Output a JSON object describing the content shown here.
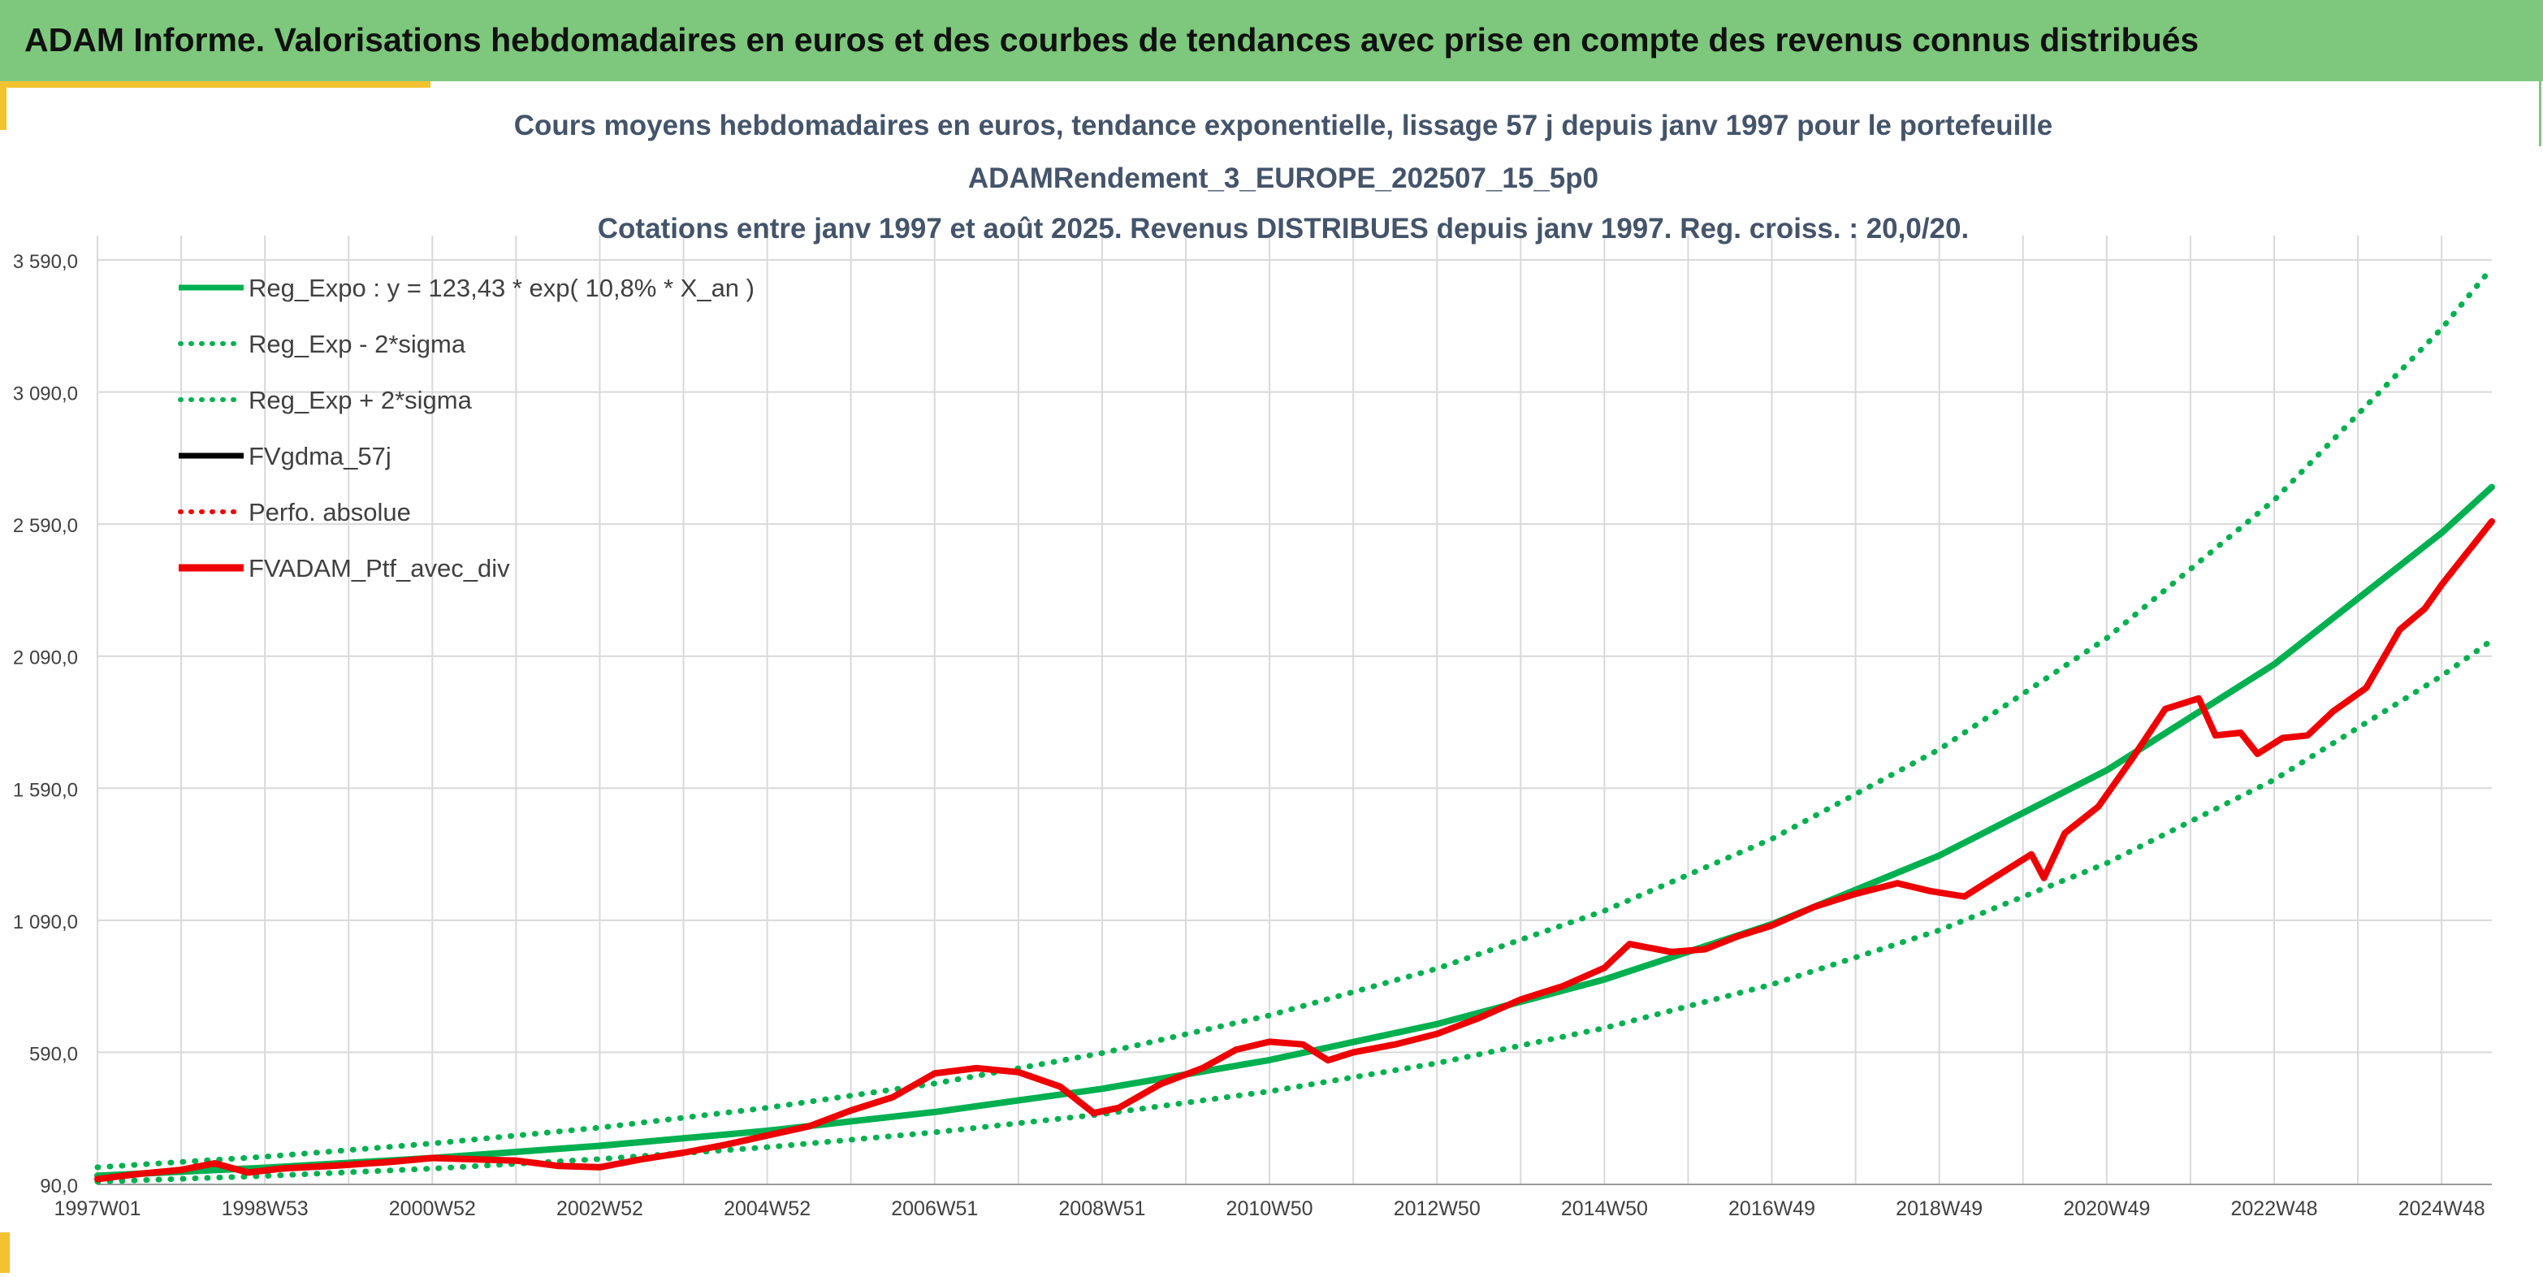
{
  "banner": {
    "title": "ADAM Informe. Valorisations hebdomadaires en euros et des courbes de tendances avec prise en compte des revenus connus distribués"
  },
  "colors": {
    "banner_bg": "#7dc87c",
    "accent": "#f2c230",
    "trend": "#00b050",
    "smoothed": "#000000",
    "portfolio": "#ee0000",
    "perfo": "#ee0000",
    "grid": "#d9d9d9",
    "title_text": "#44546a"
  },
  "chart_data": {
    "type": "line",
    "title_lines": [
      "Cours moyens hebdomadaires en euros, tendance exponentielle, lissage 57 j depuis janv 1997 pour le portefeuille",
      "ADAMRendement_3_EUROPE_202507_15_5p0",
      "Cotations entre janv 1997 et août 2025. Revenus DISTRIBUES depuis janv 1997. Reg. croiss. : 20,0/20."
    ],
    "xlabel": "",
    "ylabel": "",
    "ylim": [
      90,
      3590
    ],
    "y_ticks": [
      "3 590,0",
      "3 090,0",
      "2 590,0",
      "2 090,0",
      "1 590,0",
      "1 090,0",
      "590,0",
      "90,0"
    ],
    "y_tick_values": [
      3590,
      3090,
      2590,
      2090,
      1590,
      1090,
      590,
      90
    ],
    "x_range_years": [
      1997.0,
      2025.6
    ],
    "x_tick_labels": [
      "1997W01",
      "1998W53",
      "2000W52",
      "2002W52",
      "2004W52",
      "2006W51",
      "2008W51",
      "2010W50",
      "2012W50",
      "2014W50",
      "2016W49",
      "2018W49",
      "2020W49",
      "2022W48",
      "2024W48"
    ],
    "x_tick_years": [
      1997.0,
      1999.0,
      2001.0,
      2003.0,
      2005.0,
      2007.0,
      2009.0,
      2011.0,
      2013.0,
      2015.0,
      2017.0,
      2019.0,
      2021.0,
      2023.0,
      2025.0
    ],
    "grid": true,
    "legend_position": "top-left",
    "legend": [
      {
        "label": "Reg_Expo : y = 123,43 * exp( 10,8% *  X_an )",
        "style": "solid",
        "color": "#00b050"
      },
      {
        "label": "Reg_Exp - 2*sigma",
        "style": "dotted",
        "color": "#00b050"
      },
      {
        "label": "Reg_Exp + 2*sigma",
        "style": "dotted",
        "color": "#00b050"
      },
      {
        "label": "FVgdma_57j",
        "style": "solid",
        "color": "#000000"
      },
      {
        "label": "Perfo. absolue",
        "style": "dotted",
        "color": "#ee0000"
      },
      {
        "label": "FVADAM_Ptf_avec_div",
        "style": "solid-thick",
        "color": "#ee0000"
      }
    ],
    "trend_model": {
      "a": 123.43,
      "rate": 0.108
    },
    "series": [
      {
        "name": "Reg_Expo : y = 123,43 * exp( 10,8% *  X_an )",
        "points": [
          [
            1997.0,
            123
          ],
          [
            1999.0,
            153
          ],
          [
            2001.0,
            190
          ],
          [
            2003.0,
            236
          ],
          [
            2005.0,
            293
          ],
          [
            2007.0,
            364
          ],
          [
            2009.0,
            452
          ],
          [
            2011.0,
            561
          ],
          [
            2013.0,
            697
          ],
          [
            2015.0,
            866
          ],
          [
            2017.0,
            1075
          ],
          [
            2019.0,
            1335
          ],
          [
            2021.0,
            1658
          ],
          [
            2023.0,
            2059
          ],
          [
            2025.0,
            2557
          ],
          [
            2025.6,
            2730
          ]
        ]
      },
      {
        "name": "Reg_Exp + 2*sigma",
        "points": [
          [
            1997.0,
            155
          ],
          [
            1999.0,
            195
          ],
          [
            2001.0,
            245
          ],
          [
            2003.0,
            305
          ],
          [
            2005.0,
            380
          ],
          [
            2007.0,
            472
          ],
          [
            2009.0,
            587
          ],
          [
            2011.0,
            730
          ],
          [
            2013.0,
            907
          ],
          [
            2015.0,
            1126
          ],
          [
            2017.0,
            1398
          ],
          [
            2019.0,
            1737
          ],
          [
            2021.0,
            2158
          ],
          [
            2023.0,
            2681
          ],
          [
            2025.0,
            3330
          ],
          [
            2025.6,
            3560
          ]
        ]
      },
      {
        "name": "Reg_Exp - 2*sigma",
        "points": [
          [
            1997.0,
            100
          ],
          [
            1999.0,
            122
          ],
          [
            2001.0,
            150
          ],
          [
            2003.0,
            186
          ],
          [
            2005.0,
            231
          ],
          [
            2007.0,
            287
          ],
          [
            2009.0,
            356
          ],
          [
            2011.0,
            442
          ],
          [
            2013.0,
            549
          ],
          [
            2015.0,
            682
          ],
          [
            2017.0,
            847
          ],
          [
            2019.0,
            1052
          ],
          [
            2021.0,
            1306
          ],
          [
            2023.0,
            1622
          ],
          [
            2025.0,
            2015
          ],
          [
            2025.6,
            2150
          ]
        ]
      },
      {
        "name": "FVADAM_Ptf_avec_div",
        "points": [
          [
            1997.0,
            110
          ],
          [
            1997.5,
            130
          ],
          [
            1998.0,
            145
          ],
          [
            1998.4,
            170
          ],
          [
            1998.8,
            135
          ],
          [
            1999.2,
            150
          ],
          [
            1999.8,
            160
          ],
          [
            2000.5,
            175
          ],
          [
            2001.0,
            190
          ],
          [
            2001.5,
            185
          ],
          [
            2002.0,
            180
          ],
          [
            2002.5,
            160
          ],
          [
            2003.0,
            155
          ],
          [
            2003.5,
            185
          ],
          [
            2004.0,
            210
          ],
          [
            2004.5,
            240
          ],
          [
            2005.0,
            275
          ],
          [
            2005.5,
            310
          ],
          [
            2006.0,
            370
          ],
          [
            2006.5,
            420
          ],
          [
            2007.0,
            510
          ],
          [
            2007.5,
            530
          ],
          [
            2008.0,
            515
          ],
          [
            2008.5,
            460
          ],
          [
            2008.9,
            360
          ],
          [
            2009.2,
            380
          ],
          [
            2009.7,
            470
          ],
          [
            2010.2,
            530
          ],
          [
            2010.6,
            600
          ],
          [
            2011.0,
            630
          ],
          [
            2011.4,
            620
          ],
          [
            2011.7,
            560
          ],
          [
            2012.0,
            590
          ],
          [
            2012.5,
            620
          ],
          [
            2013.0,
            660
          ],
          [
            2013.5,
            720
          ],
          [
            2014.0,
            790
          ],
          [
            2014.5,
            840
          ],
          [
            2015.0,
            910
          ],
          [
            2015.3,
            1000
          ],
          [
            2015.8,
            970
          ],
          [
            2016.2,
            980
          ],
          [
            2016.6,
            1030
          ],
          [
            2017.0,
            1070
          ],
          [
            2017.5,
            1140
          ],
          [
            2018.0,
            1190
          ],
          [
            2018.5,
            1230
          ],
          [
            2018.9,
            1200
          ],
          [
            2019.3,
            1180
          ],
          [
            2019.7,
            1260
          ],
          [
            2020.1,
            1340
          ],
          [
            2020.25,
            1250
          ],
          [
            2020.5,
            1420
          ],
          [
            2020.9,
            1520
          ],
          [
            2021.3,
            1700
          ],
          [
            2021.7,
            1890
          ],
          [
            2022.1,
            1930
          ],
          [
            2022.3,
            1790
          ],
          [
            2022.6,
            1800
          ],
          [
            2022.8,
            1720
          ],
          [
            2023.1,
            1780
          ],
          [
            2023.4,
            1790
          ],
          [
            2023.7,
            1880
          ],
          [
            2024.1,
            1970
          ],
          [
            2024.5,
            2190
          ],
          [
            2024.8,
            2270
          ],
          [
            2025.0,
            2360
          ],
          [
            2025.3,
            2480
          ],
          [
            2025.6,
            2600
          ]
        ]
      }
    ]
  }
}
